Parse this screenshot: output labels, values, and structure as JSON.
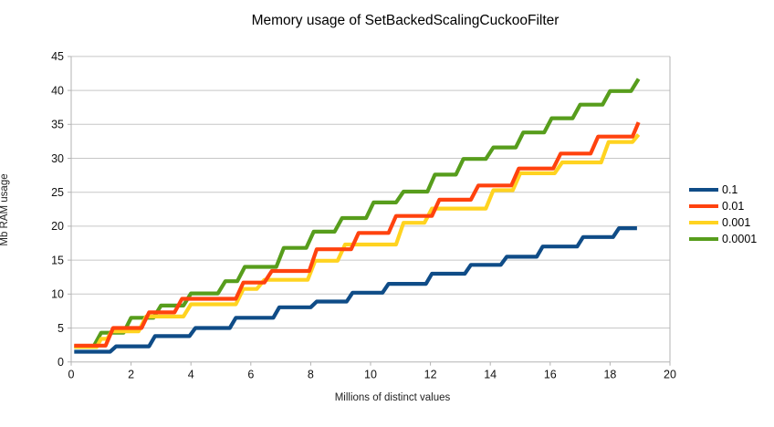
{
  "title": "Memory usage of SetBackedScalingCuckooFilter",
  "colors": {
    "background": "#ffffff",
    "gridline": "#c7c7c7",
    "axis": "#b3b3b3",
    "text": "#000000"
  },
  "legend": {
    "position": "right",
    "entries": [
      "0.1",
      "0.01",
      "0.001",
      "0.0001"
    ]
  },
  "chart_data": {
    "type": "line",
    "subtype": "step",
    "title": "Memory usage of SetBackedScalingCuckooFilter",
    "xlabel": "Millions of distinct values",
    "ylabel": "Mb RAM usage",
    "xlim": [
      0,
      20
    ],
    "ylim": [
      0,
      45
    ],
    "x_ticks": [
      0,
      2,
      4,
      6,
      8,
      10,
      12,
      14,
      16,
      18,
      20
    ],
    "y_ticks": [
      0,
      5,
      10,
      15,
      20,
      25,
      30,
      35,
      40,
      45
    ],
    "grid": "horizontal",
    "legend_position": "right",
    "z_order": [
      "0.1",
      "0.0001",
      "0.001",
      "0.01"
    ],
    "series": [
      {
        "name": "0.1",
        "color": "#0f4c87",
        "points": [
          [
            0.1,
            1.5
          ],
          [
            1.3,
            1.5
          ],
          [
            1.5,
            2.3
          ],
          [
            2.6,
            2.3
          ],
          [
            2.8,
            3.8
          ],
          [
            3.95,
            3.8
          ],
          [
            4.15,
            5.0
          ],
          [
            5.3,
            5.0
          ],
          [
            5.5,
            6.5
          ],
          [
            6.75,
            6.5
          ],
          [
            6.95,
            8.05
          ],
          [
            8.0,
            8.05
          ],
          [
            8.2,
            8.9
          ],
          [
            9.2,
            8.9
          ],
          [
            9.4,
            10.2
          ],
          [
            10.4,
            10.2
          ],
          [
            10.6,
            11.5
          ],
          [
            11.85,
            11.5
          ],
          [
            12.05,
            13.0
          ],
          [
            13.15,
            13.0
          ],
          [
            13.35,
            14.3
          ],
          [
            14.35,
            14.3
          ],
          [
            14.55,
            15.5
          ],
          [
            15.55,
            15.5
          ],
          [
            15.75,
            17.0
          ],
          [
            16.9,
            17.0
          ],
          [
            17.1,
            18.4
          ],
          [
            18.1,
            18.4
          ],
          [
            18.3,
            19.7
          ],
          [
            18.9,
            19.7
          ]
        ]
      },
      {
        "name": "0.01",
        "color": "#ff420e",
        "points": [
          [
            0.1,
            2.4
          ],
          [
            1.15,
            2.4
          ],
          [
            1.4,
            5.0
          ],
          [
            2.35,
            5.0
          ],
          [
            2.6,
            7.3
          ],
          [
            3.45,
            7.3
          ],
          [
            3.7,
            9.3
          ],
          [
            5.5,
            9.3
          ],
          [
            5.75,
            11.7
          ],
          [
            6.45,
            11.7
          ],
          [
            6.7,
            13.4
          ],
          [
            7.95,
            13.4
          ],
          [
            8.2,
            16.6
          ],
          [
            9.35,
            16.6
          ],
          [
            9.6,
            19.0
          ],
          [
            10.6,
            19.0
          ],
          [
            10.85,
            21.5
          ],
          [
            12.05,
            21.5
          ],
          [
            12.3,
            23.9
          ],
          [
            13.35,
            23.9
          ],
          [
            13.6,
            26.0
          ],
          [
            14.7,
            26.0
          ],
          [
            14.95,
            28.5
          ],
          [
            16.1,
            28.5
          ],
          [
            16.35,
            30.7
          ],
          [
            17.35,
            30.7
          ],
          [
            17.6,
            33.2
          ],
          [
            18.75,
            33.2
          ],
          [
            18.95,
            35.3
          ]
        ]
      },
      {
        "name": "0.001",
        "color": "#ffd320",
        "points": [
          [
            0.1,
            2.2
          ],
          [
            0.85,
            2.2
          ],
          [
            1.0,
            3.4
          ],
          [
            1.2,
            3.4
          ],
          [
            1.35,
            4.5
          ],
          [
            2.25,
            4.5
          ],
          [
            2.5,
            6.7
          ],
          [
            3.75,
            6.7
          ],
          [
            4.0,
            8.5
          ],
          [
            5.5,
            8.5
          ],
          [
            5.75,
            10.75
          ],
          [
            6.2,
            10.75
          ],
          [
            6.45,
            12.1
          ],
          [
            7.9,
            12.1
          ],
          [
            8.15,
            14.9
          ],
          [
            8.9,
            14.9
          ],
          [
            9.15,
            17.3
          ],
          [
            10.85,
            17.3
          ],
          [
            11.1,
            20.5
          ],
          [
            11.8,
            20.5
          ],
          [
            12.05,
            22.6
          ],
          [
            13.85,
            22.6
          ],
          [
            14.1,
            25.3
          ],
          [
            14.75,
            25.3
          ],
          [
            15.0,
            27.8
          ],
          [
            16.15,
            27.8
          ],
          [
            16.4,
            29.4
          ],
          [
            17.7,
            29.4
          ],
          [
            17.95,
            32.4
          ],
          [
            18.75,
            32.4
          ],
          [
            18.95,
            33.5
          ]
        ]
      },
      {
        "name": "0.0001",
        "color": "#579d1c",
        "points": [
          [
            0.1,
            2.3
          ],
          [
            0.75,
            2.3
          ],
          [
            1.0,
            4.3
          ],
          [
            1.75,
            4.3
          ],
          [
            2.0,
            6.5
          ],
          [
            2.75,
            6.5
          ],
          [
            3.0,
            8.3
          ],
          [
            3.75,
            8.3
          ],
          [
            4.0,
            10.1
          ],
          [
            4.9,
            10.1
          ],
          [
            5.15,
            11.9
          ],
          [
            5.55,
            11.9
          ],
          [
            5.8,
            14.0
          ],
          [
            6.85,
            14.0
          ],
          [
            7.1,
            16.8
          ],
          [
            7.85,
            16.8
          ],
          [
            8.1,
            19.2
          ],
          [
            8.8,
            19.2
          ],
          [
            9.05,
            21.2
          ],
          [
            9.85,
            21.2
          ],
          [
            10.1,
            23.5
          ],
          [
            10.85,
            23.5
          ],
          [
            11.1,
            25.1
          ],
          [
            11.9,
            25.1
          ],
          [
            12.15,
            27.6
          ],
          [
            12.85,
            27.6
          ],
          [
            13.1,
            29.9
          ],
          [
            13.85,
            29.9
          ],
          [
            14.1,
            31.6
          ],
          [
            14.85,
            31.6
          ],
          [
            15.1,
            33.8
          ],
          [
            15.8,
            33.8
          ],
          [
            16.05,
            35.9
          ],
          [
            16.75,
            35.9
          ],
          [
            17.0,
            37.9
          ],
          [
            17.75,
            37.9
          ],
          [
            18.0,
            39.9
          ],
          [
            18.7,
            39.9
          ],
          [
            18.95,
            41.7
          ]
        ]
      }
    ]
  }
}
